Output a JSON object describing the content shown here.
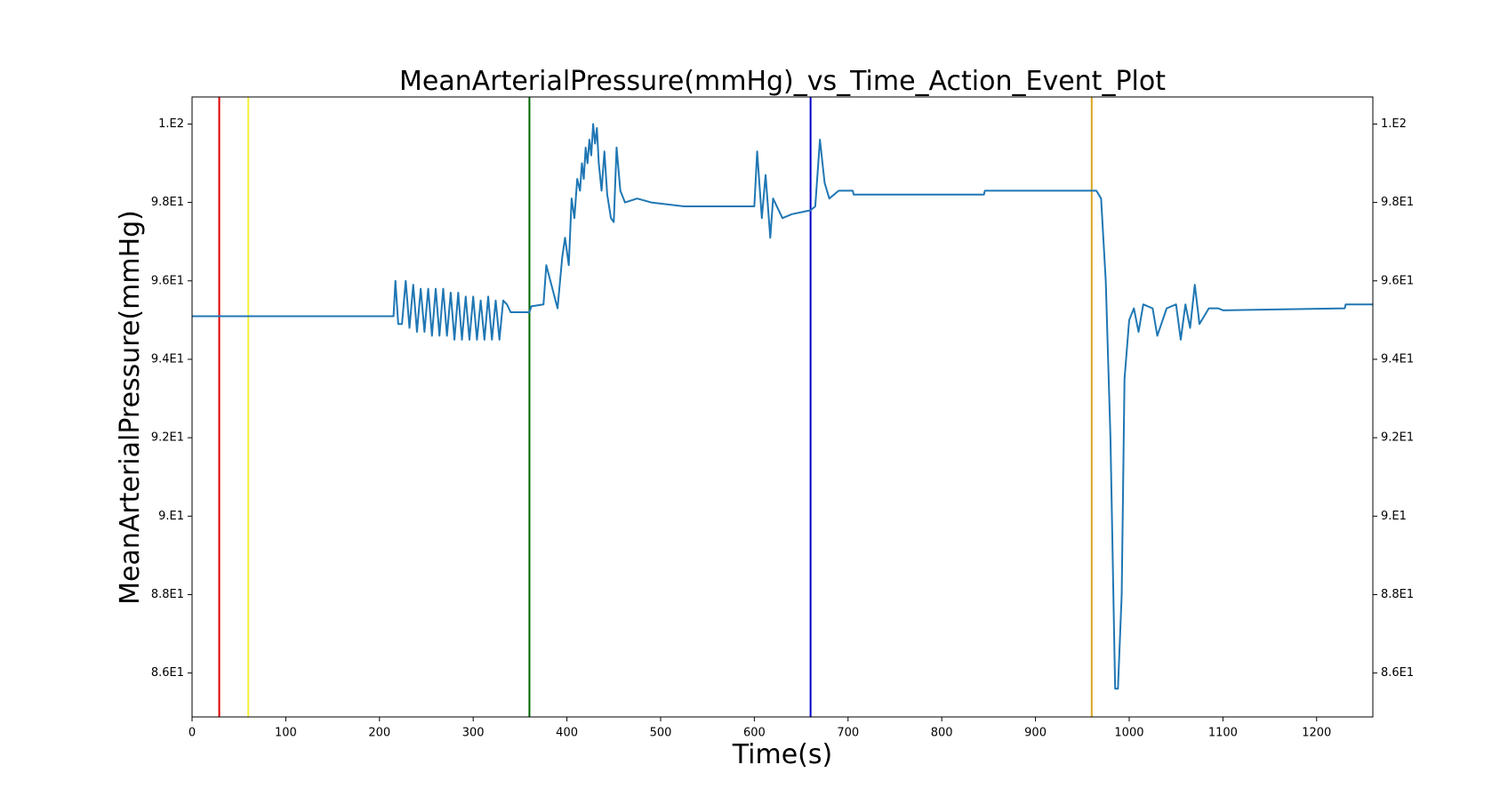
{
  "chart_data": {
    "type": "line",
    "title": "MeanArterialPressure(mmHg)_vs_Time_Action_Event_Plot",
    "xlabel": "Time(s)",
    "ylabel": "MeanArterialPressure(mmHg)",
    "xlim": [
      0,
      1260
    ],
    "xticks": [
      0,
      100,
      200,
      300,
      400,
      500,
      600,
      700,
      800,
      900,
      1000,
      1100,
      1200
    ],
    "ylim": [
      84.88,
      100.69
    ],
    "yticks": [
      {
        "value": 86,
        "label": "8.6E1"
      },
      {
        "value": 88,
        "label": "8.8E1"
      },
      {
        "value": 90,
        "label": "9.E1"
      },
      {
        "value": 92,
        "label": "9.2E1"
      },
      {
        "value": 94,
        "label": "9.4E1"
      },
      {
        "value": 96,
        "label": "9.6E1"
      },
      {
        "value": 98,
        "label": "9.8E1"
      },
      {
        "value": 100,
        "label": "1.E2"
      }
    ],
    "y2lim": [
      84.88,
      100.69
    ],
    "y2ticks": [
      {
        "value": 86,
        "label": "8.6E1"
      },
      {
        "value": 88,
        "label": "8.8E1"
      },
      {
        "value": 90,
        "label": "9.E1"
      },
      {
        "value": 92,
        "label": "9.2E1"
      },
      {
        "value": 94,
        "label": "9.4E1"
      },
      {
        "value": 96,
        "label": "9.6E1"
      },
      {
        "value": 98,
        "label": "9.8E1"
      },
      {
        "value": 100,
        "label": "1.E2"
      }
    ],
    "event_lines": [
      {
        "x": 29,
        "color": "#e00000"
      },
      {
        "x": 60,
        "color": "#f5f03a"
      },
      {
        "x": 360,
        "color": "#006400"
      },
      {
        "x": 660,
        "color": "#0000c8"
      },
      {
        "x": 960,
        "color": "#daa520"
      }
    ],
    "x": [
      0,
      215,
      217,
      220,
      224,
      228,
      232,
      236,
      240,
      244,
      248,
      252,
      256,
      260,
      264,
      268,
      272,
      276,
      280,
      284,
      288,
      292,
      296,
      300,
      304,
      308,
      312,
      316,
      320,
      324,
      328,
      332,
      336,
      340,
      360,
      362,
      375,
      378,
      390,
      395,
      398,
      402,
      405,
      408,
      411,
      414,
      416,
      418,
      420,
      422,
      424,
      426,
      428,
      430,
      432,
      434,
      437,
      440,
      443,
      447,
      450,
      453,
      457,
      462,
      475,
      490,
      525,
      600,
      603,
      608,
      612,
      617,
      620,
      630,
      640,
      660,
      665,
      670,
      675,
      680,
      690,
      705,
      706,
      845,
      846,
      965,
      970,
      975,
      980,
      985,
      988,
      992,
      995,
      1000,
      1005,
      1010,
      1015,
      1025,
      1030,
      1040,
      1050,
      1055,
      1060,
      1065,
      1070,
      1075,
      1085,
      1095,
      1100,
      1230,
      1231,
      1260
    ],
    "series": [
      {
        "color": "#1f77b4",
        "values": [
          95.1,
          95.1,
          96.0,
          94.9,
          94.9,
          96.0,
          94.8,
          95.9,
          94.7,
          95.8,
          94.7,
          95.8,
          94.6,
          95.8,
          94.6,
          95.8,
          94.6,
          95.7,
          94.5,
          95.7,
          94.5,
          95.6,
          94.5,
          95.6,
          94.5,
          95.5,
          94.5,
          95.6,
          94.5,
          95.5,
          94.5,
          95.5,
          95.4,
          95.2,
          95.2,
          95.35,
          95.4,
          96.4,
          95.3,
          96.6,
          97.1,
          96.4,
          98.1,
          97.6,
          98.6,
          98.3,
          99.0,
          98.6,
          99.4,
          99.0,
          99.6,
          99.2,
          100.0,
          99.5,
          99.9,
          99.0,
          98.3,
          99.3,
          98.2,
          97.6,
          97.5,
          99.4,
          98.3,
          98.0,
          98.1,
          98.0,
          97.9,
          97.9,
          99.3,
          97.6,
          98.7,
          97.1,
          98.1,
          97.6,
          97.7,
          97.8,
          97.9,
          99.6,
          98.5,
          98.1,
          98.3,
          98.3,
          98.2,
          98.2,
          98.3,
          98.3,
          98.1,
          96.0,
          92.0,
          85.6,
          85.6,
          88.0,
          93.5,
          95.0,
          95.3,
          94.7,
          95.4,
          95.3,
          94.6,
          95.3,
          95.4,
          94.5,
          95.4,
          94.8,
          95.9,
          94.9,
          95.3,
          95.3,
          95.25,
          95.3,
          95.4,
          95.4
        ]
      }
    ]
  }
}
